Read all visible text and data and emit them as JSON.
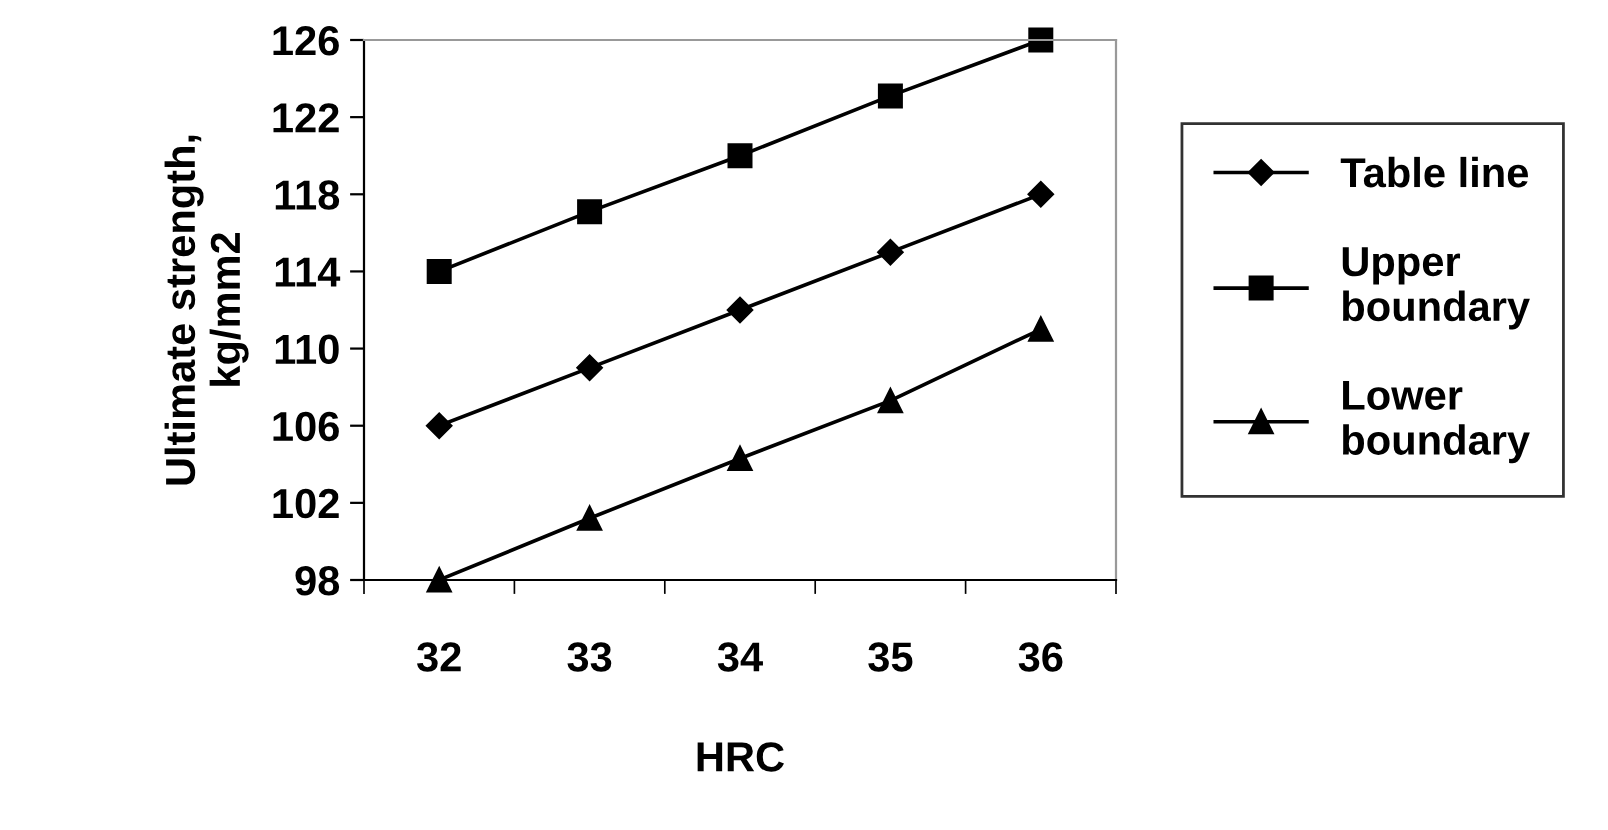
{
  "chart_data": {
    "type": "line",
    "xlabel": "HRC",
    "ylabel": "Ultimate strength,\nkg/mm2",
    "categories": [
      "32",
      "33",
      "34",
      "35",
      "36"
    ],
    "series": [
      {
        "name": "Table line",
        "color": "#000000",
        "marker": "diamond",
        "values": [
          106,
          109,
          112,
          115,
          118
        ]
      },
      {
        "name": "Upper\nboundary",
        "color": "#000000",
        "marker": "square",
        "values": [
          114,
          117.1,
          120,
          123.1,
          126
        ]
      },
      {
        "name": "Lower\nboundary",
        "color": "#000000",
        "marker": "triangle",
        "values": [
          98,
          101.2,
          104.3,
          107.3,
          111
        ]
      }
    ],
    "ylim": [
      98,
      126
    ],
    "yticks": [
      98,
      102,
      106,
      110,
      114,
      118,
      122,
      126
    ],
    "grid": false,
    "legend": "right",
    "line_style": "solid"
  }
}
